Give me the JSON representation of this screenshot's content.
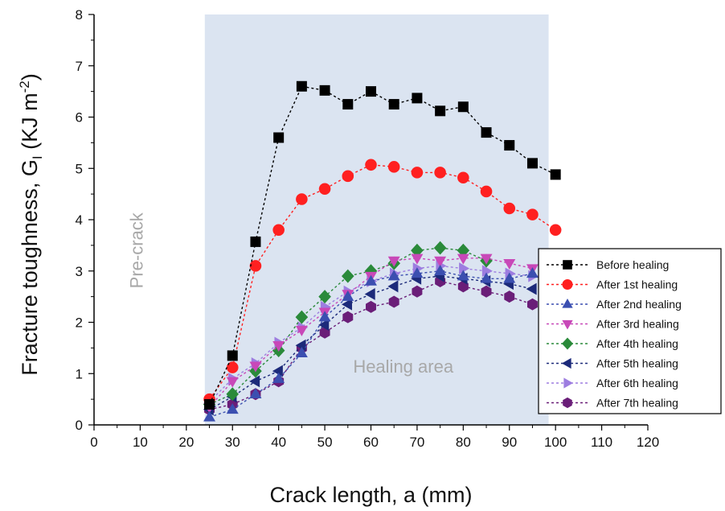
{
  "chart_data": {
    "type": "line",
    "xlabel": "Crack length, a (mm)",
    "ylabel_main": "Fracture toughness, G",
    "ylabel_sub": "I",
    "ylabel_units": " (KJ m",
    "ylabel_sup": "-2",
    "ylabel_close": ")",
    "xlim": [
      0,
      120
    ],
    "ylim": [
      0,
      8
    ],
    "xticks": [
      "0",
      "10",
      "20",
      "30",
      "40",
      "50",
      "60",
      "70",
      "80",
      "90",
      "100",
      "110",
      "120"
    ],
    "yticks": [
      "0",
      "1",
      "2",
      "3",
      "4",
      "5",
      "6",
      "7",
      "8"
    ],
    "grid": false,
    "legend_position": "right",
    "annotations": {
      "precrack": "Pre-crack",
      "healing_area": "Healing area"
    },
    "healing_region": [
      24,
      98.5
    ],
    "colors": {
      "healing_region": "#dbe4f1",
      "annotation": "#a8a8a8"
    },
    "series": [
      {
        "name": "Before healing",
        "color": "#000000",
        "marker": "square",
        "x": [
          25,
          30,
          35,
          40,
          45,
          50,
          55,
          60,
          65,
          70,
          75,
          80,
          85,
          90,
          95,
          100
        ],
        "y": [
          0.4,
          1.35,
          3.57,
          5.6,
          6.6,
          6.52,
          6.25,
          6.5,
          6.25,
          6.37,
          6.12,
          6.2,
          5.7,
          5.45,
          5.1,
          4.88
        ]
      },
      {
        "name": "After 1st healing",
        "color": "#ff2020",
        "marker": "circle",
        "x": [
          25,
          30,
          35,
          40,
          45,
          50,
          55,
          60,
          65,
          70,
          75,
          80,
          85,
          90,
          95,
          100
        ],
        "y": [
          0.5,
          1.12,
          3.1,
          3.8,
          4.4,
          4.6,
          4.85,
          5.07,
          5.03,
          4.92,
          4.92,
          4.82,
          4.55,
          4.22,
          4.1,
          3.8
        ]
      },
      {
        "name": "After 2nd healing",
        "color": "#3b4fb0",
        "marker": "triangle-up",
        "x": [
          25,
          30,
          35,
          40,
          45,
          50,
          55,
          60,
          65,
          70,
          75,
          80,
          85,
          90,
          95
        ],
        "y": [
          0.15,
          0.3,
          0.6,
          0.9,
          1.4,
          2.1,
          2.5,
          2.8,
          2.9,
          2.95,
          3.0,
          2.9,
          2.85,
          2.85,
          2.95
        ]
      },
      {
        "name": "After 3rd healing",
        "color": "#c848b8",
        "marker": "triangle-down",
        "x": [
          25,
          30,
          35,
          40,
          45,
          50,
          55,
          60,
          65,
          70,
          75,
          80,
          85,
          90,
          95
        ],
        "y": [
          0.35,
          0.85,
          1.15,
          1.55,
          1.85,
          2.2,
          2.55,
          2.9,
          3.2,
          3.25,
          3.2,
          3.25,
          3.25,
          3.15,
          3.05
        ]
      },
      {
        "name": "After 4th healing",
        "color": "#2a8a3a",
        "marker": "diamond",
        "x": [
          25,
          30,
          35,
          40,
          45,
          50,
          55,
          60,
          65,
          70,
          75,
          80,
          85
        ],
        "y": [
          0.4,
          0.6,
          1.05,
          1.45,
          2.1,
          2.5,
          2.9,
          3.0,
          3.15,
          3.4,
          3.45,
          3.4,
          3.2
        ]
      },
      {
        "name": "After 5th healing",
        "color": "#1c2a7a",
        "marker": "triangle-left",
        "x": [
          25,
          30,
          35,
          40,
          45,
          50,
          55,
          60,
          65,
          70,
          75,
          80,
          85,
          90,
          95
        ],
        "y": [
          0.3,
          0.55,
          0.85,
          1.05,
          1.55,
          1.95,
          2.35,
          2.55,
          2.7,
          2.85,
          2.9,
          2.85,
          2.8,
          2.75,
          2.65
        ]
      },
      {
        "name": "After 6th healing",
        "color": "#9d7de0",
        "marker": "triangle-right",
        "x": [
          25,
          30,
          35,
          40,
          45,
          50,
          55,
          60,
          65,
          70,
          75,
          80,
          85,
          90,
          95
        ],
        "y": [
          0.45,
          0.9,
          1.2,
          1.6,
          1.9,
          2.3,
          2.6,
          2.8,
          2.95,
          3.05,
          3.1,
          3.05,
          3.0,
          2.95,
          2.9
        ]
      },
      {
        "name": "After 7th healing",
        "color": "#6a1e78",
        "marker": "hexagon",
        "x": [
          25,
          30,
          35,
          40,
          45,
          50,
          55,
          60,
          65,
          70,
          75,
          80,
          85,
          90,
          95
        ],
        "y": [
          0.3,
          0.4,
          0.6,
          0.85,
          1.5,
          1.8,
          2.1,
          2.3,
          2.4,
          2.6,
          2.8,
          2.7,
          2.6,
          2.5,
          2.35
        ]
      }
    ]
  }
}
